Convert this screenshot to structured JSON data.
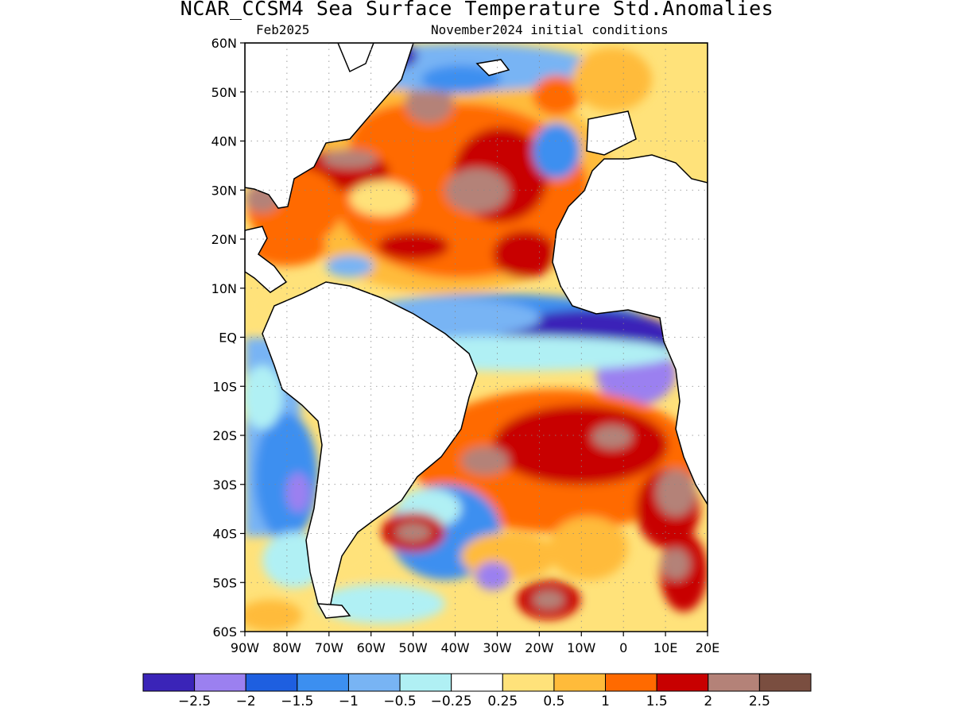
{
  "title": "NCAR_CCSM4 Sea Surface Temperature Std.Anomalies",
  "valid_month": "Feb2025",
  "initial_conditions": "November2024 initial conditions",
  "map": {
    "lat_labels": [
      "60N",
      "50N",
      "40N",
      "30N",
      "20N",
      "10N",
      "EQ",
      "10S",
      "20S",
      "30S",
      "40S",
      "50S",
      "60S"
    ],
    "lon_labels": [
      "90W",
      "80W",
      "70W",
      "60W",
      "50W",
      "40W",
      "30W",
      "20W",
      "10W",
      "0",
      "10E",
      "20E"
    ],
    "lat_range": [
      -60,
      60
    ],
    "lon_range": [
      -90,
      20
    ],
    "grid": "dotted"
  },
  "colorbar": {
    "colors": [
      "#3a24b8",
      "#9b80f0",
      "#1e5fe0",
      "#3c8ff0",
      "#78b4f4",
      "#b0f0f4",
      "#ffffff",
      "#ffe27a",
      "#ffbb3a",
      "#ff6a00",
      "#c80000",
      "#b48278",
      "#7a4e40"
    ],
    "tick_labels": [
      "−2.5",
      "−2",
      "−1.5",
      "−1",
      "−0.5",
      "−0.25",
      "0.25",
      "0.5",
      "1",
      "1.5",
      "2",
      "2.5"
    ]
  }
}
